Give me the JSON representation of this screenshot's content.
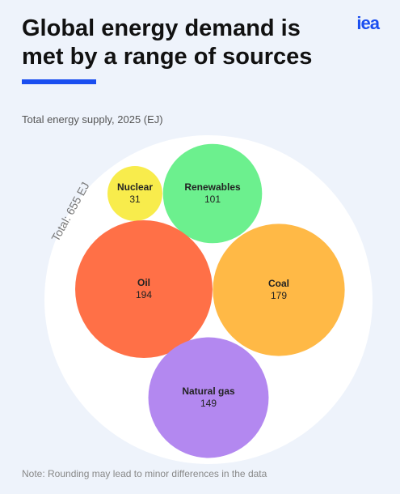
{
  "logo": "iea",
  "chart_data": {
    "type": "packed-bubble",
    "title": "Global energy demand is met by a range of sources",
    "subtitle": "Total energy supply, 2025 (EJ)",
    "total_label": "Total: 655 EJ",
    "note": "Note: Rounding may lead to minor differences in the data",
    "categories": [
      "Nuclear",
      "Renewables",
      "Oil",
      "Coal",
      "Natural gas"
    ],
    "values": [
      31,
      101,
      194,
      179,
      149
    ],
    "colors": [
      "#f8ec4c",
      "#6cf08e",
      "#ff7047",
      "#ffb946",
      "#b388f0"
    ]
  }
}
